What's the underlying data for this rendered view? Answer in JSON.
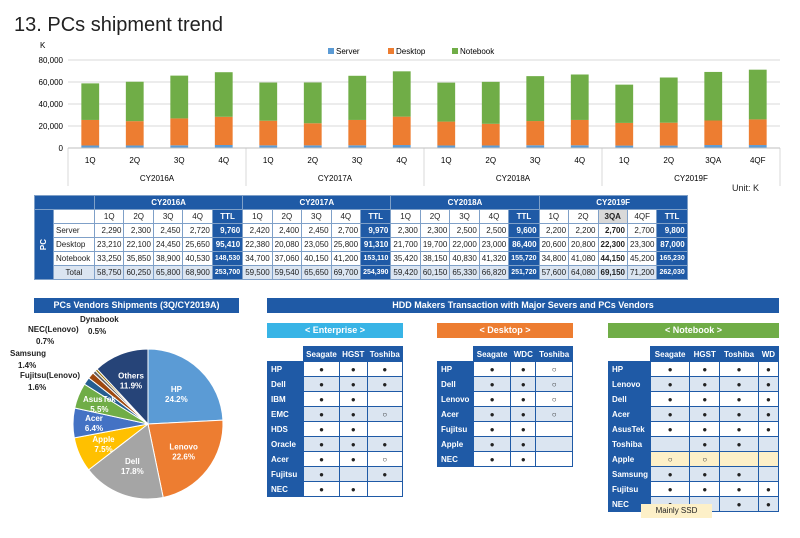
{
  "title": "13. PCs shipment trend",
  "chart_data": [
    {
      "type": "bar",
      "stacked": true,
      "title": "",
      "ylabel": "K",
      "ylim": [
        0,
        80000
      ],
      "yticks": [
        "80,000",
        "60,000",
        "40,000",
        "20,000",
        "0"
      ],
      "legend": [
        "Server",
        "Desktop",
        "Notebook"
      ],
      "colors": [
        "#5b9bd5",
        "#ed7d31",
        "#70ad47"
      ],
      "categories": [
        "1Q",
        "2Q",
        "3Q",
        "4Q",
        "1Q",
        "2Q",
        "3Q",
        "4Q",
        "1Q",
        "2Q",
        "3Q",
        "4Q",
        "1Q",
        "2Q",
        "3QA",
        "4QF"
      ],
      "groups": [
        "CY2016A",
        "CY2017A",
        "CY2018A",
        "CY2019F"
      ],
      "series": [
        {
          "name": "Server",
          "values": [
            2290,
            2300,
            2450,
            2720,
            2420,
            2400,
            2450,
            2700,
            2300,
            2300,
            2500,
            2500,
            2200,
            2200,
            2700,
            2700
          ]
        },
        {
          "name": "Desktop",
          "values": [
            23210,
            22100,
            24450,
            25650,
            22380,
            20080,
            23050,
            25800,
            21700,
            19700,
            22000,
            23000,
            20600,
            20800,
            22300,
            23300
          ]
        },
        {
          "name": "Notebook",
          "values": [
            33250,
            35850,
            38900,
            40530,
            34700,
            37060,
            40150,
            41200,
            35420,
            38150,
            40830,
            41320,
            34800,
            41080,
            44150,
            45200
          ]
        }
      ]
    },
    {
      "type": "pie",
      "title": "PCs Vendors Shipments (3Q/CY2019A)",
      "slices": [
        {
          "name": "HP",
          "value": 24.2,
          "label": "24.2%",
          "color": "#5b9bd5"
        },
        {
          "name": "Lenovo",
          "value": 22.6,
          "label": "22.6%",
          "color": "#ed7d31"
        },
        {
          "name": "Dell",
          "value": 17.8,
          "label": "17.8%",
          "color": "#a5a5a5"
        },
        {
          "name": "Apple",
          "value": 7.5,
          "label": "7.5%",
          "color": "#ffc000"
        },
        {
          "name": "Acer",
          "value": 6.4,
          "label": "6.4%",
          "color": "#4472c4"
        },
        {
          "name": "AsusTek",
          "value": 5.5,
          "label": "5.5%",
          "color": "#70ad47"
        },
        {
          "name": "Fujitsu(Lenovo)",
          "value": 1.6,
          "label": "1.6%",
          "color": "#255e91"
        },
        {
          "name": "Samsung",
          "value": 1.4,
          "label": "1.4%",
          "color": "#9e480e"
        },
        {
          "name": "NEC(Lenovo)",
          "value": 0.7,
          "label": "0.7%",
          "color": "#636363"
        },
        {
          "name": "Dynabook",
          "value": 0.5,
          "label": "0.5%",
          "color": "#997300"
        },
        {
          "name": "Others",
          "value": 11.9,
          "label": "11.9%",
          "color": "#264478"
        }
      ]
    }
  ],
  "unit": "Unit: K",
  "table": {
    "pcs": "PC",
    "ttl": "TTL",
    "rows": [
      {
        "label": "Server",
        "values": [
          "2,290",
          "2,300",
          "2,450",
          "2,720",
          "9,760",
          "2,420",
          "2,400",
          "2,450",
          "2,700",
          "9,970",
          "2,300",
          "2,300",
          "2,500",
          "2,500",
          "9,600",
          "2,200",
          "2,200",
          "2,700",
          "2,700",
          "9,800"
        ]
      },
      {
        "label": "Desktop",
        "values": [
          "23,210",
          "22,100",
          "24,450",
          "25,650",
          "95,410",
          "22,380",
          "20,080",
          "23,050",
          "25,800",
          "91,310",
          "21,700",
          "19,700",
          "22,000",
          "23,000",
          "86,400",
          "20,600",
          "20,800",
          "22,300",
          "23,300",
          "87,000"
        ]
      },
      {
        "label": "Notebook",
        "values": [
          "33,250",
          "35,850",
          "38,900",
          "40,530",
          "148,530",
          "34,700",
          "37,060",
          "40,150",
          "41,200",
          "153,110",
          "35,420",
          "38,150",
          "40,830",
          "41,320",
          "155,720",
          "34,800",
          "41,080",
          "44,150",
          "45,200",
          "165,230"
        ]
      },
      {
        "label": "Total",
        "values": [
          "58,750",
          "60,250",
          "65,800",
          "68,900",
          "253,700",
          "59,500",
          "59,540",
          "65,650",
          "69,700",
          "254,390",
          "59,420",
          "60,150",
          "65,330",
          "66,820",
          "251,720",
          "57,600",
          "64,080",
          "69,150",
          "71,200",
          "262,030"
        ]
      }
    ]
  },
  "hdd": {
    "title": "HDD Makers Transaction with Major Severs and PCs Vendors",
    "enterprise": {
      "label": "< Enterprise >",
      "makers": [
        "Seagate",
        "HGST",
        "Toshiba"
      ],
      "rows": [
        {
          "co": "HP",
          "v": [
            "●",
            "●",
            "●"
          ]
        },
        {
          "co": "Dell",
          "v": [
            "●",
            "●",
            "●"
          ]
        },
        {
          "co": "IBM",
          "v": [
            "●",
            "●",
            ""
          ]
        },
        {
          "co": "EMC",
          "v": [
            "●",
            "●",
            "○"
          ]
        },
        {
          "co": "HDS",
          "v": [
            "●",
            "●",
            ""
          ]
        },
        {
          "co": "Oracle",
          "v": [
            "●",
            "●",
            "●"
          ]
        },
        {
          "co": "Acer",
          "v": [
            "●",
            "●",
            "○"
          ]
        },
        {
          "co": "Fujitsu",
          "v": [
            "●",
            "",
            "●"
          ]
        },
        {
          "co": "NEC",
          "v": [
            "●",
            "●",
            ""
          ]
        }
      ]
    },
    "desktop": {
      "label": "< Desktop >",
      "makers": [
        "Seagate",
        "WDC",
        "Toshiba"
      ],
      "rows": [
        {
          "co": "HP",
          "v": [
            "●",
            "●",
            "○"
          ]
        },
        {
          "co": "Dell",
          "v": [
            "●",
            "●",
            "○"
          ]
        },
        {
          "co": "Lenovo",
          "v": [
            "●",
            "●",
            "○"
          ]
        },
        {
          "co": "Acer",
          "v": [
            "●",
            "●",
            "○"
          ]
        },
        {
          "co": "Fujitsu",
          "v": [
            "●",
            "●",
            ""
          ]
        },
        {
          "co": "Apple",
          "v": [
            "●",
            "●",
            ""
          ]
        },
        {
          "co": "NEC",
          "v": [
            "●",
            "●",
            ""
          ]
        }
      ]
    },
    "notebook": {
      "label": "< Notebook >",
      "makers": [
        "Seagate",
        "HGST",
        "Toshiba",
        "WD"
      ],
      "rows": [
        {
          "co": "HP",
          "v": [
            "●",
            "●",
            "●",
            "●"
          ]
        },
        {
          "co": "Lenovo",
          "v": [
            "●",
            "●",
            "●",
            "●"
          ]
        },
        {
          "co": "Dell",
          "v": [
            "●",
            "●",
            "●",
            "●"
          ]
        },
        {
          "co": "Acer",
          "v": [
            "●",
            "●",
            "●",
            "●"
          ]
        },
        {
          "co": "AsusTek",
          "v": [
            "●",
            "●",
            "●",
            "●"
          ]
        },
        {
          "co": "Toshiba",
          "v": [
            "",
            "●",
            "●",
            ""
          ]
        },
        {
          "co": "Apple",
          "v": [
            "○",
            "○",
            "",
            ""
          ]
        },
        {
          "co": "Samsung",
          "v": [
            "●",
            "●",
            "●",
            ""
          ]
        },
        {
          "co": "Fujitsu",
          "v": [
            "●",
            "●",
            "●",
            "●"
          ]
        },
        {
          "co": "NEC",
          "v": [
            "●",
            "",
            "●",
            "●"
          ]
        }
      ],
      "note": "Mainly SSD"
    }
  }
}
